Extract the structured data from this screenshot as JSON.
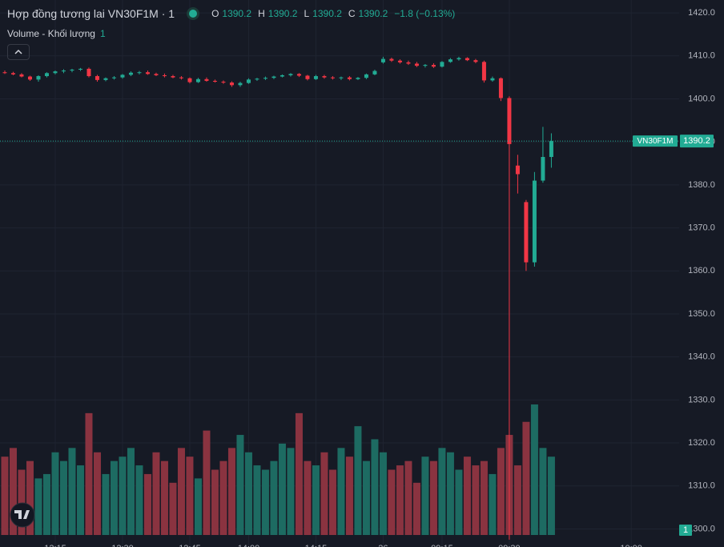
{
  "chart_data": {
    "type": "candlestick",
    "title": "Hợp đồng tương lai VN30F1M · 1",
    "legend": {
      "o_label": "O",
      "open": 1390.2,
      "h_label": "H",
      "high": 1390.2,
      "l_label": "L",
      "low": 1390.2,
      "c_label": "C",
      "close": 1390.2,
      "change": "−1.8 (−0.13%)"
    },
    "volume_title": "Volume - Khối lượng",
    "volume_value": "1",
    "symbol": "VN30F1M",
    "last_price": 1390.2,
    "badge": "1",
    "up_color": "#22ab94",
    "down_color": "#f23645",
    "up_volume_color": "#1d6b62",
    "down_volume_color": "#8a3340",
    "xlim": [
      -0.57,
      80.2
    ],
    "xticks": [
      {
        "value": 6,
        "label": "12:15"
      },
      {
        "value": 14,
        "label": "12:30"
      },
      {
        "value": 22,
        "label": "12:45"
      },
      {
        "value": 29,
        "label": "14:00"
      },
      {
        "value": 37,
        "label": "14:15"
      },
      {
        "value": 45,
        "label": "26"
      },
      {
        "value": 52,
        "label": "09:15"
      },
      {
        "value": 60,
        "label": "09:30"
      },
      {
        "value": 74.5,
        "label": "10:00"
      }
    ],
    "ylim": [
      1295.8,
      1423
    ],
    "yticks": [
      {
        "value": 1420,
        "label": "1420.0"
      },
      {
        "value": 1410,
        "label": "1410.0"
      },
      {
        "value": 1400,
        "label": "1400.0"
      },
      {
        "value": 1390,
        "label": "1390.0"
      },
      {
        "value": 1380,
        "label": "1380.0"
      },
      {
        "value": 1370,
        "label": "1370.0"
      },
      {
        "value": 1360,
        "label": "1360.0"
      },
      {
        "value": 1350,
        "label": "1350.0"
      },
      {
        "value": 1340,
        "label": "1340.0"
      },
      {
        "value": 1330,
        "label": "1330.0"
      },
      {
        "value": 1320,
        "label": "1320.0"
      },
      {
        "value": 1310,
        "label": "1310.0"
      },
      {
        "value": 1300,
        "label": "1300.0"
      }
    ],
    "grid": true,
    "open": [
      1406.2,
      1406,
      1405.7,
      1405.2,
      1404.5,
      1405.3,
      1406,
      1406.4,
      1406.6,
      1406.8,
      1407,
      1405.3,
      1404.4,
      1404.8,
      1405,
      1405.6,
      1406.1,
      1406.2,
      1405.8,
      1405.5,
      1405.3,
      1405,
      1404.8,
      1403.9,
      1404.6,
      1404.2,
      1404,
      1403.8,
      1403.2,
      1403.7,
      1404.5,
      1404.7,
      1404.9,
      1405.2,
      1405.5,
      1405.8,
      1405.4,
      1404.6,
      1405.3,
      1405,
      1404.8,
      1405,
      1404.6,
      1404.9,
      1405.7,
      1408.5,
      1409.3,
      1408.9,
      1408.5,
      1408.2,
      1407.7,
      1407.9,
      1407.5,
      1408.6,
      1409.2,
      1409.5,
      1409,
      1408.6,
      1404.3,
      1404.8,
      1400.2,
      1384.5,
      1376,
      1362,
      1381,
      1386.5
    ],
    "high": [
      1406.6,
      1406.3,
      1406,
      1405.4,
      1405.5,
      1406.2,
      1406.6,
      1406.9,
      1407,
      1407.2,
      1407.3,
      1405.6,
      1405,
      1405.3,
      1405.8,
      1406.4,
      1406.5,
      1406.6,
      1406.1,
      1405.9,
      1405.6,
      1405.3,
      1405,
      1404.9,
      1405,
      1404.5,
      1404.3,
      1404.1,
      1404,
      1404.8,
      1404.9,
      1405.2,
      1405.4,
      1405.7,
      1406,
      1406,
      1405.6,
      1405.6,
      1405.6,
      1405.3,
      1405.2,
      1405.3,
      1405.1,
      1405.9,
      1406.8,
      1409.8,
      1409.6,
      1409.2,
      1408.9,
      1408.6,
      1408.1,
      1408.3,
      1408.8,
      1409.5,
      1409.8,
      1409.7,
      1409.3,
      1408.9,
      1405.2,
      1405,
      1400.6,
      1387,
      1376.5,
      1383,
      1393.5,
      1392
    ],
    "low": [
      1405.8,
      1405.5,
      1405,
      1404.2,
      1404,
      1405,
      1405.7,
      1406,
      1406.2,
      1406.5,
      1405,
      1404,
      1404.1,
      1404.5,
      1404.7,
      1405.3,
      1405.7,
      1405.6,
      1405.3,
      1405,
      1404.8,
      1404.5,
      1403.6,
      1403.7,
      1404,
      1403.8,
      1403.5,
      1402.8,
      1402.8,
      1403.5,
      1404.2,
      1404.4,
      1404.6,
      1405,
      1405.2,
      1405.1,
      1404.3,
      1404.4,
      1404.7,
      1404.5,
      1404.4,
      1404.3,
      1404.4,
      1404.6,
      1405.5,
      1408.2,
      1408.6,
      1408.2,
      1407.9,
      1407.4,
      1407.3,
      1407.2,
      1407.3,
      1408.4,
      1408.9,
      1408.8,
      1408.3,
      1403.8,
      1404,
      1399.5,
      1297.5,
      1378,
      1360,
      1361,
      1380.5,
      1384
    ],
    "close": [
      1406,
      1405.7,
      1405.2,
      1404.5,
      1405.3,
      1406,
      1406.4,
      1406.6,
      1406.8,
      1407,
      1405.3,
      1404.4,
      1404.8,
      1405,
      1405.6,
      1406.1,
      1406.2,
      1405.8,
      1405.5,
      1405.3,
      1405,
      1404.8,
      1403.9,
      1404.6,
      1404.2,
      1404,
      1403.8,
      1403.2,
      1403.7,
      1404.5,
      1404.7,
      1404.9,
      1405.2,
      1405.5,
      1405.8,
      1405.4,
      1404.6,
      1405.3,
      1405,
      1404.8,
      1405,
      1404.6,
      1404.9,
      1405.7,
      1406.5,
      1409.3,
      1408.9,
      1408.5,
      1408.2,
      1407.7,
      1407.9,
      1407.5,
      1408.6,
      1409.2,
      1409.5,
      1409,
      1408.6,
      1404.3,
      1404.8,
      1400.2,
      1389.5,
      1382.5,
      1362,
      1381,
      1386.5,
      1390.2
    ],
    "volume": [
      180,
      200,
      150,
      170,
      130,
      140,
      190,
      170,
      200,
      160,
      280,
      190,
      140,
      170,
      180,
      200,
      160,
      140,
      190,
      170,
      120,
      200,
      180,
      130,
      240,
      150,
      170,
      200,
      230,
      190,
      160,
      150,
      170,
      210,
      200,
      280,
      170,
      160,
      190,
      150,
      200,
      180,
      250,
      170,
      220,
      190,
      150,
      160,
      170,
      120,
      180,
      170,
      200,
      190,
      150,
      180,
      160,
      170,
      140,
      200,
      230,
      160,
      260,
      300,
      200,
      180
    ]
  }
}
